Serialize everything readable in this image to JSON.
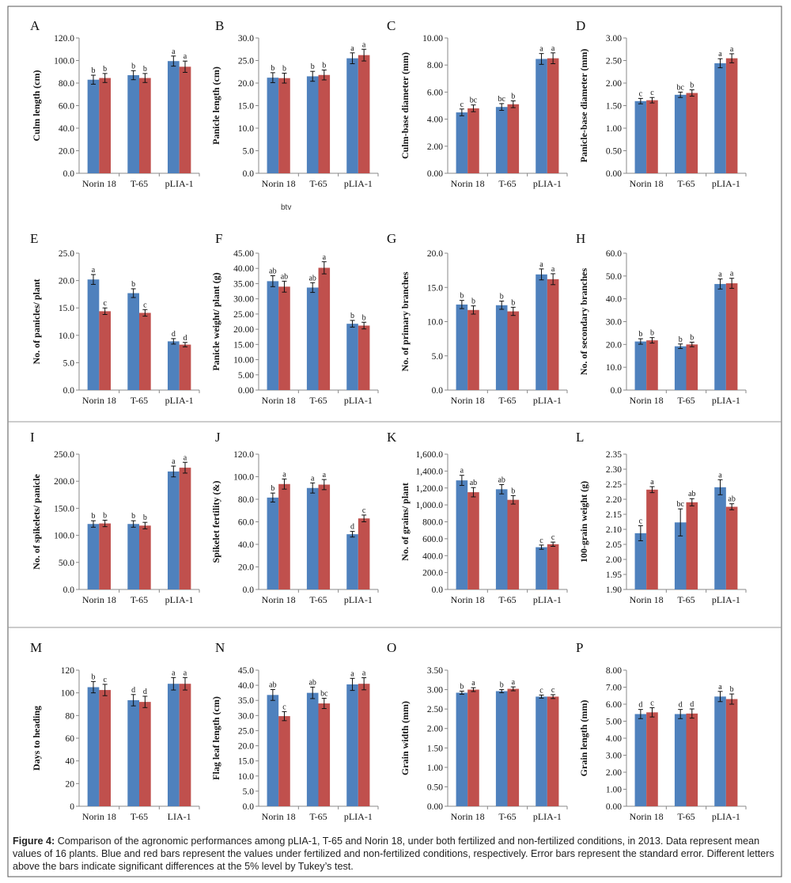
{
  "caption": {
    "label": "Figure 4:",
    "text": "Comparison of the agronomic performances among pLIA-1, T-65 and Norin 18, under both fertilized and non-fertilized conditions, in 2013. Data represent mean values of 16 plants. Blue and red bars represent the values under fertilized and non-fertilized conditions, respectively. Error bars represent the standard error. Different letters above the bars indicate significant differences at the 5% level by Tukey’s test."
  },
  "colors": {
    "fertilized": "#4F81BD",
    "non_fertilized": "#C0504D"
  },
  "stray_text": "btv",
  "chart_data": [
    {
      "panel": "A",
      "type": "bar",
      "ylabel": "Culm length (cm)",
      "categories": [
        "Norin 18",
        "T-65",
        "pLIA-1"
      ],
      "yticks": [
        "0.0",
        "20.0",
        "40.0",
        "60.0",
        "80.0",
        "100.0",
        "120.0"
      ],
      "ylim": [
        0,
        120
      ],
      "grid": false,
      "series": [
        {
          "values": [
            83,
            87,
            99.5
          ],
          "errors": [
            4,
            4,
            4.5
          ],
          "letters": [
            "b",
            "b",
            "a"
          ]
        },
        {
          "values": [
            84.5,
            84.5,
            94.5
          ],
          "errors": [
            4,
            4,
            5
          ],
          "letters": [
            "b",
            "b",
            "a"
          ]
        }
      ]
    },
    {
      "panel": "B",
      "type": "bar",
      "ylabel": "Panicle length (cm)",
      "categories": [
        "Norin 18",
        "T-65",
        "pLIA-1"
      ],
      "yticks": [
        "0.0",
        "5.0",
        "10.0",
        "15.0",
        "20.0",
        "25.0",
        "30.0"
      ],
      "ylim": [
        0,
        30
      ],
      "grid": false,
      "series": [
        {
          "values": [
            21.2,
            21.5,
            25.5
          ],
          "errors": [
            1.1,
            1.1,
            1.2
          ],
          "letters": [
            "b",
            "b",
            "a"
          ]
        },
        {
          "values": [
            21.1,
            21.8,
            26.2
          ],
          "errors": [
            1.1,
            1.1,
            1.3
          ],
          "letters": [
            "b",
            "b",
            "a"
          ]
        }
      ]
    },
    {
      "panel": "C",
      "type": "bar",
      "ylabel": "Culm-base diameter (mm)",
      "categories": [
        "Norin 18",
        "T-65",
        "pLIA-1"
      ],
      "yticks": [
        "0.00",
        "2.00",
        "4.00",
        "6.00",
        "8.00",
        "10.00"
      ],
      "ylim": [
        0,
        10
      ],
      "grid": false,
      "series": [
        {
          "values": [
            4.5,
            4.9,
            8.45
          ],
          "errors": [
            0.25,
            0.25,
            0.4
          ],
          "letters": [
            "c",
            "bc",
            "a"
          ]
        },
        {
          "values": [
            4.8,
            5.1,
            8.5
          ],
          "errors": [
            0.25,
            0.25,
            0.4
          ],
          "letters": [
            "bc",
            "b",
            "a"
          ]
        }
      ]
    },
    {
      "panel": "D",
      "type": "bar",
      "ylabel": "Panicle-base diameter (mm)",
      "categories": [
        "Norin 18",
        "T-65",
        "pLIA-1"
      ],
      "yticks": [
        "0.00",
        "0.50",
        "1.00",
        "1.50",
        "2.00",
        "2.50",
        "3.00"
      ],
      "ylim": [
        0,
        3
      ],
      "grid": false,
      "series": [
        {
          "values": [
            1.6,
            1.74,
            2.44
          ],
          "errors": [
            0.06,
            0.06,
            0.1
          ],
          "letters": [
            "c",
            "bc",
            "a"
          ]
        },
        {
          "values": [
            1.62,
            1.78,
            2.55
          ],
          "errors": [
            0.06,
            0.07,
            0.1
          ],
          "letters": [
            "c",
            "b",
            "a"
          ]
        }
      ]
    },
    {
      "panel": "E",
      "type": "bar",
      "ylabel": "No. of panicles/ plant",
      "categories": [
        "Norin 18",
        "T-65",
        "pLIA-1"
      ],
      "yticks": [
        "0.0",
        "5.0",
        "10.0",
        "15.0",
        "20.0",
        "25.0"
      ],
      "ylim": [
        0,
        25
      ],
      "grid": false,
      "series": [
        {
          "values": [
            20.2,
            17.7,
            8.9
          ],
          "errors": [
            0.9,
            0.8,
            0.5
          ],
          "letters": [
            "a",
            "b",
            "d"
          ]
        },
        {
          "values": [
            14.4,
            14.1,
            8.3
          ],
          "errors": [
            0.6,
            0.6,
            0.4
          ],
          "letters": [
            "c",
            "c",
            "d"
          ]
        }
      ]
    },
    {
      "panel": "F",
      "type": "bar",
      "ylabel": "Panicle weight/ plant (g)",
      "categories": [
        "Norin 18",
        "T-65",
        "pLIA-1"
      ],
      "yticks": [
        "0.00",
        "5.00",
        "10.00",
        "15.00",
        "20.00",
        "25.00",
        "30.00",
        "35.00",
        "40.00",
        "45.00"
      ],
      "ylim": [
        0,
        45
      ],
      "grid": false,
      "series": [
        {
          "values": [
            35.8,
            33.7,
            21.8
          ],
          "errors": [
            1.8,
            1.6,
            1.1
          ],
          "letters": [
            "ab",
            "ab",
            "b"
          ]
        },
        {
          "values": [
            34,
            40.2,
            21.2
          ],
          "errors": [
            1.8,
            2,
            1.1
          ],
          "letters": [
            "ab",
            "a",
            "b"
          ]
        }
      ]
    },
    {
      "panel": "G",
      "type": "bar",
      "ylabel": "No. of primary branches",
      "categories": [
        "Norin 18",
        "T-65",
        "pLIA-1"
      ],
      "yticks": [
        "0.0",
        "5.0",
        "10.0",
        "15.0",
        "20.0"
      ],
      "ylim": [
        0,
        20
      ],
      "grid": false,
      "series": [
        {
          "values": [
            12.5,
            12.4,
            16.9
          ],
          "errors": [
            0.6,
            0.6,
            0.8
          ],
          "letters": [
            "b",
            "b",
            "a"
          ]
        },
        {
          "values": [
            11.7,
            11.5,
            16.2
          ],
          "errors": [
            0.6,
            0.6,
            0.8
          ],
          "letters": [
            "b",
            "b",
            "a"
          ]
        }
      ]
    },
    {
      "panel": "H",
      "type": "bar",
      "ylabel": "No. of secondary branches",
      "categories": [
        "Norin 18",
        "T-65",
        "pLIA-1"
      ],
      "yticks": [
        "0.0",
        "10.0",
        "20.0",
        "30.0",
        "40.0",
        "50.0",
        "60.0"
      ],
      "ylim": [
        0,
        60
      ],
      "grid": false,
      "series": [
        {
          "values": [
            21.3,
            19.2,
            46.5
          ],
          "errors": [
            1.2,
            1,
            2.2
          ],
          "letters": [
            "b",
            "b",
            "a"
          ]
        },
        {
          "values": [
            21.8,
            20,
            46.8
          ],
          "errors": [
            1.2,
            1,
            2.2
          ],
          "letters": [
            "b",
            "b",
            "a"
          ]
        }
      ]
    },
    {
      "panel": "I",
      "type": "bar",
      "ylabel": "No. of spikelets/ panicle",
      "categories": [
        "Norin 18",
        "T-65",
        "pLIA-1"
      ],
      "yticks": [
        "0.0",
        "50.0",
        "100.0",
        "150.0",
        "200.0",
        "250.0"
      ],
      "ylim": [
        0,
        250
      ],
      "grid": false,
      "series": [
        {
          "values": [
            121,
            121,
            218
          ],
          "errors": [
            6,
            6,
            10
          ],
          "letters": [
            "b",
            "b",
            "a"
          ]
        },
        {
          "values": [
            122,
            118,
            225
          ],
          "errors": [
            6,
            6,
            10
          ],
          "letters": [
            "b",
            "b",
            "a"
          ]
        }
      ]
    },
    {
      "panel": "J",
      "type": "bar",
      "ylabel": "Spikelet fertility (&)",
      "categories": [
        "Norin 18",
        "T-65",
        "pLIA-1"
      ],
      "yticks": [
        "0.0",
        "20.0",
        "40.0",
        "60.0",
        "80.0",
        "100.0",
        "120.0"
      ],
      "ylim": [
        0,
        120
      ],
      "grid": false,
      "series": [
        {
          "values": [
            81.5,
            90,
            49
          ],
          "errors": [
            4,
            4.5,
            2.5
          ],
          "letters": [
            "b",
            "a",
            "d"
          ]
        },
        {
          "values": [
            93.5,
            93,
            63
          ],
          "errors": [
            4.5,
            4.5,
            3
          ],
          "letters": [
            "a",
            "a",
            "c"
          ]
        }
      ]
    },
    {
      "panel": "K",
      "type": "bar",
      "ylabel": "No. of grains/ plant",
      "categories": [
        "Norin 18",
        "T-65",
        "pLIA-1"
      ],
      "yticks": [
        "0.0",
        "200.0",
        "400.0",
        "600.0",
        "800.0",
        "1,000.0",
        "1,200.0",
        "1,400.0",
        "1,600.0"
      ],
      "ylim": [
        0,
        1600
      ],
      "grid": false,
      "series": [
        {
          "values": [
            1290,
            1185,
            500
          ],
          "errors": [
            60,
            55,
            25
          ],
          "letters": [
            "a",
            "ab",
            "c"
          ]
        },
        {
          "values": [
            1150,
            1060,
            535
          ],
          "errors": [
            55,
            50,
            25
          ],
          "letters": [
            "ab",
            "b",
            "c"
          ]
        }
      ]
    },
    {
      "panel": "L",
      "type": "bar",
      "ylabel": "100-grain weight (g)",
      "categories": [
        "Norin 18",
        "T-65",
        "pLIA-1"
      ],
      "yticks": [
        "1.90",
        "1.95",
        "2.00",
        "2.05",
        "2.10",
        "2.15",
        "2.20",
        "2.25",
        "2.30",
        "2.35"
      ],
      "ylim": [
        1.9,
        2.35
      ],
      "grid": false,
      "series": [
        {
          "values": [
            2.087,
            2.123,
            2.24
          ],
          "errors": [
            0.025,
            0.045,
            0.025
          ],
          "letters": [
            "c",
            "bc",
            "a"
          ]
        },
        {
          "values": [
            2.232,
            2.19,
            2.175
          ],
          "errors": [
            0.01,
            0.012,
            0.01
          ],
          "letters": [
            "a",
            "ab",
            "ab"
          ]
        }
      ]
    },
    {
      "panel": "M",
      "type": "bar",
      "ylabel": "Days to heading",
      "categories": [
        "Norin 18",
        "T-65",
        "LIA-1"
      ],
      "yticks": [
        "0",
        "20",
        "40",
        "60",
        "80",
        "100",
        "120"
      ],
      "ylim": [
        0,
        120
      ],
      "grid": false,
      "series": [
        {
          "values": [
            105,
            93.5,
            108
          ],
          "errors": [
            5,
            5,
            5.5
          ],
          "letters": [
            "b",
            "d",
            "a"
          ]
        },
        {
          "values": [
            102.5,
            92,
            108
          ],
          "errors": [
            5,
            5,
            5.5
          ],
          "letters": [
            "c",
            "d",
            "a"
          ]
        }
      ]
    },
    {
      "panel": "N",
      "type": "bar",
      "ylabel": "Flag leaf length (cm)",
      "categories": [
        "Norin 18",
        "T-65",
        "pLIA-1"
      ],
      "yticks": [
        "0.0",
        "5.0",
        "10.0",
        "15.0",
        "20.0",
        "25.0",
        "30.0",
        "35.0",
        "40.0",
        "45.0"
      ],
      "ylim": [
        0,
        45
      ],
      "grid": false,
      "series": [
        {
          "values": [
            36.8,
            37.5,
            40.3
          ],
          "errors": [
            1.8,
            1.9,
            2
          ],
          "letters": [
            "ab",
            "ab",
            "a"
          ]
        },
        {
          "values": [
            29.8,
            34,
            40.5
          ],
          "errors": [
            1.5,
            1.7,
            2
          ],
          "letters": [
            "c",
            "bc",
            "a"
          ]
        }
      ]
    },
    {
      "panel": "O",
      "type": "bar",
      "ylabel": "Grain width (mm)",
      "categories": [
        "Norin 18",
        "T-65",
        "pLIA-1"
      ],
      "yticks": [
        "0.00",
        "0.50",
        "1.00",
        "1.50",
        "2.00",
        "2.50",
        "3.00",
        "3.50"
      ],
      "ylim": [
        0,
        3.5
      ],
      "grid": false,
      "series": [
        {
          "values": [
            2.92,
            2.96,
            2.82
          ],
          "errors": [
            0.04,
            0.04,
            0.04
          ],
          "letters": [
            "b",
            "b",
            "c"
          ]
        },
        {
          "values": [
            3,
            3.02,
            2.82
          ],
          "errors": [
            0.05,
            0.05,
            0.05
          ],
          "letters": [
            "a",
            "a",
            "c"
          ]
        }
      ]
    },
    {
      "panel": "P",
      "type": "bar",
      "ylabel": "Grain length (mm)",
      "categories": [
        "Norin 18",
        "T-65",
        "pLIA-1"
      ],
      "yticks": [
        "0.00",
        "1.00",
        "2.00",
        "3.00",
        "4.00",
        "5.00",
        "6.00",
        "7.00",
        "8.00"
      ],
      "ylim": [
        0,
        8
      ],
      "grid": false,
      "series": [
        {
          "values": [
            5.42,
            5.42,
            6.45
          ],
          "errors": [
            0.27,
            0.27,
            0.3
          ],
          "letters": [
            "d",
            "d",
            "a"
          ]
        },
        {
          "values": [
            5.52,
            5.45,
            6.3
          ],
          "errors": [
            0.27,
            0.27,
            0.3
          ],
          "letters": [
            "c",
            "d",
            "b"
          ]
        }
      ]
    }
  ]
}
